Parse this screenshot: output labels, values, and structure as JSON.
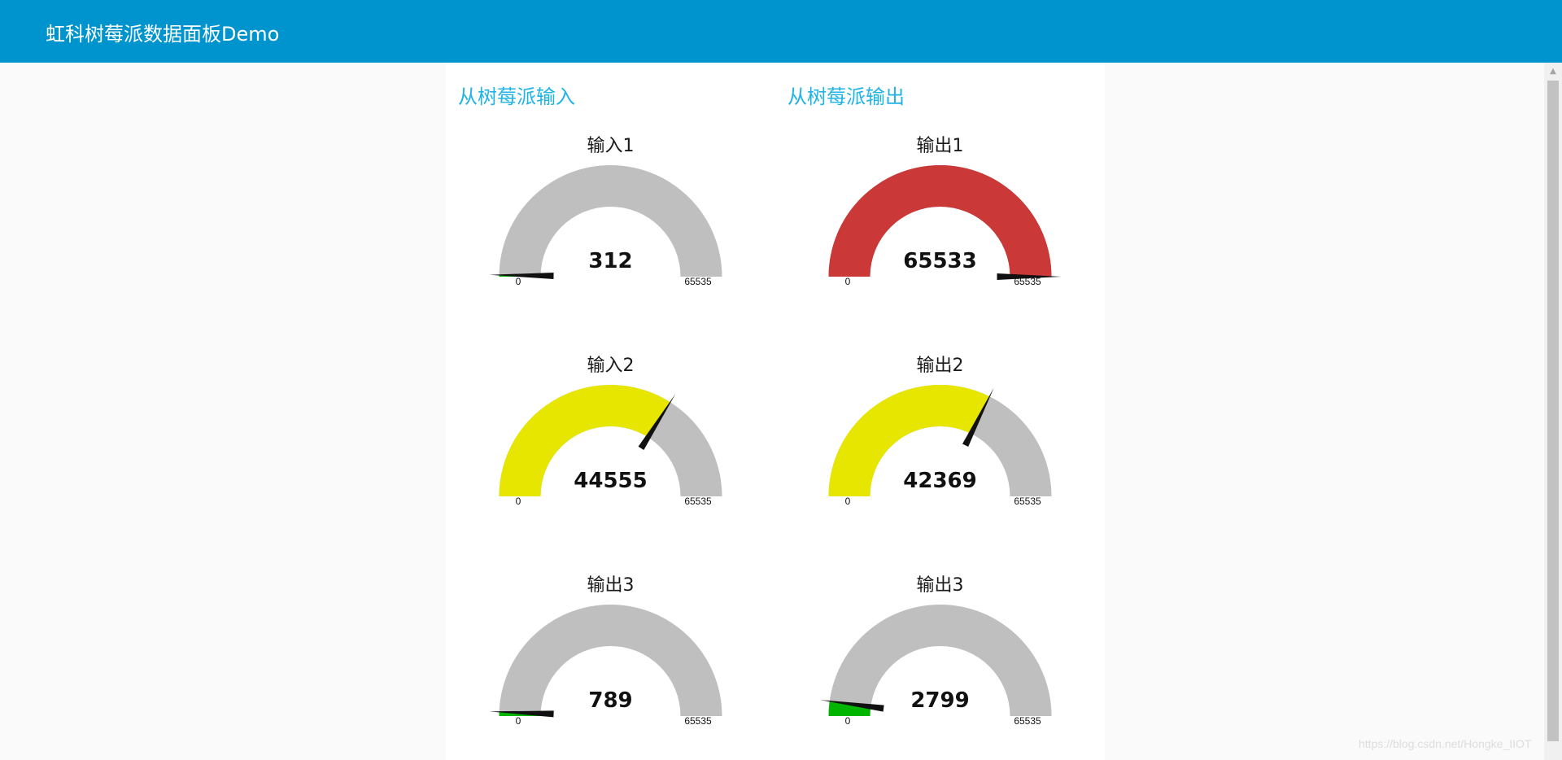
{
  "toolbar": {
    "title": "虹科树莓派数据面板Demo"
  },
  "groups": [
    {
      "title": "从树莓派输入",
      "gauges": [
        {
          "label": "输入1",
          "value": 312,
          "display": "312",
          "min": 0,
          "max": 65535,
          "min_label": "0",
          "max_label": "65535",
          "fill_color": "#00b500"
        },
        {
          "label": "输入2",
          "value": 44555,
          "display": "44555",
          "min": 0,
          "max": 65535,
          "min_label": "0",
          "max_label": "65535",
          "fill_color": "#e6e600"
        },
        {
          "label": "输出3",
          "value": 789,
          "display": "789",
          "min": 0,
          "max": 65535,
          "min_label": "0",
          "max_label": "65535",
          "fill_color": "#00b500"
        }
      ]
    },
    {
      "title": "从树莓派输出",
      "gauges": [
        {
          "label": "输出1",
          "value": 65533,
          "display": "65533",
          "min": 0,
          "max": 65535,
          "min_label": "0",
          "max_label": "65535",
          "fill_color": "#ca3838"
        },
        {
          "label": "输出2",
          "value": 42369,
          "display": "42369",
          "min": 0,
          "max": 65535,
          "min_label": "0",
          "max_label": "65535",
          "fill_color": "#e6e600"
        },
        {
          "label": "输出3",
          "value": 2799,
          "display": "2799",
          "min": 0,
          "max": 65535,
          "min_label": "0",
          "max_label": "65535",
          "fill_color": "#00b500"
        }
      ]
    }
  ],
  "colors": {
    "toolbar": "#0094ce",
    "group_title": "#1fb3e6",
    "gauge_background": "#bfbfbf",
    "needle": "#111111"
  },
  "watermark": "https://blog.csdn.net/Hongke_IIOT"
}
